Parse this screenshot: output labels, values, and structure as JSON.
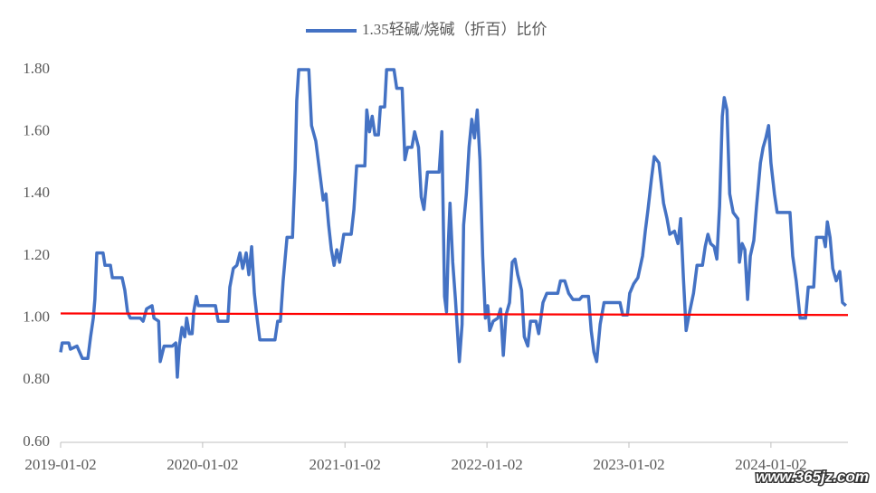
{
  "chart_data": {
    "type": "line",
    "xlim": [
      "2019-01-02",
      "2024-07-18"
    ],
    "xticks": [
      "2019-01-02",
      "2020-01-02",
      "2021-01-02",
      "2022-01-02",
      "2023-01-02",
      "2024-01-02"
    ],
    "ylim": [
      0.6,
      1.8
    ],
    "yticks": [
      {
        "value": 0.6,
        "label": "0.60"
      },
      {
        "value": 0.8,
        "label": "0.80"
      },
      {
        "value": 1.0,
        "label": "1.00"
      },
      {
        "value": 1.2,
        "label": "1.20"
      },
      {
        "value": 1.4,
        "label": "1.40"
      },
      {
        "value": 1.6,
        "label": "1.60"
      },
      {
        "value": 1.8,
        "label": "1.80"
      }
    ],
    "grid": false,
    "legend": "top",
    "watermark": "www.365jz.com",
    "x": [
      "2019-01-02",
      "2019-01-06",
      "2019-01-23",
      "2019-01-27",
      "2019-02-13",
      "2019-02-20",
      "2019-02-27",
      "2019-03-13",
      "2019-03-20",
      "2019-03-27",
      "2019-03-31",
      "2019-04-05",
      "2019-04-21",
      "2019-04-26",
      "2019-05-10",
      "2019-05-15",
      "2019-06-09",
      "2019-06-16",
      "2019-06-23",
      "2019-06-30",
      "2019-07-26",
      "2019-08-02",
      "2019-08-11",
      "2019-08-25",
      "2019-08-30",
      "2019-09-11",
      "2019-09-15",
      "2019-09-25",
      "2019-10-16",
      "2019-10-25",
      "2019-10-29",
      "2019-11-03",
      "2019-11-10",
      "2019-11-17",
      "2019-11-22",
      "2019-11-29",
      "2019-12-06",
      "2019-12-10",
      "2019-12-17",
      "2019-12-22",
      "2020-02-04",
      "2020-02-11",
      "2020-03-07",
      "2020-03-12",
      "2020-03-21",
      "2020-03-30",
      "2020-04-07",
      "2020-04-14",
      "2020-04-23",
      "2020-04-30",
      "2020-05-07",
      "2020-05-14",
      "2020-05-21",
      "2020-05-28",
      "2020-07-06",
      "2020-07-13",
      "2020-07-20",
      "2020-07-27",
      "2020-08-06",
      "2020-08-20",
      "2020-08-27",
      "2020-08-31",
      "2020-09-05",
      "2020-10-01",
      "2020-10-08",
      "2020-10-19",
      "2020-10-29",
      "2020-11-07",
      "2020-11-14",
      "2020-11-21",
      "2020-11-28",
      "2020-12-05",
      "2020-12-12",
      "2020-12-19",
      "2020-12-30",
      "2021-01-18",
      "2021-01-25",
      "2021-02-01",
      "2021-02-22",
      "2021-02-27",
      "2021-03-06",
      "2021-03-13",
      "2021-03-20",
      "2021-03-29",
      "2021-04-03",
      "2021-04-14",
      "2021-04-19",
      "2021-05-08",
      "2021-05-15",
      "2021-05-29",
      "2021-06-05",
      "2021-06-12",
      "2021-06-23",
      "2021-06-30",
      "2021-07-10",
      "2021-07-17",
      "2021-07-24",
      "2021-08-02",
      "2021-09-01",
      "2021-09-08",
      "2021-09-15",
      "2021-09-20",
      "2021-09-25",
      "2021-09-29",
      "2021-10-06",
      "2021-10-13",
      "2021-10-23",
      "2021-10-30",
      "2021-11-03",
      "2021-11-10",
      "2021-11-17",
      "2021-11-24",
      "2021-12-01",
      "2021-12-08",
      "2021-12-15",
      "2021-12-22",
      "2021-12-29",
      "2022-01-04",
      "2022-01-09",
      "2022-01-18",
      "2022-01-30",
      "2022-02-06",
      "2022-02-13",
      "2022-02-20",
      "2022-03-01",
      "2022-03-08",
      "2022-03-15",
      "2022-03-22",
      "2022-04-01",
      "2022-04-08",
      "2022-04-17",
      "2022-04-24",
      "2022-05-08",
      "2022-05-15",
      "2022-05-26",
      "2022-06-05",
      "2022-07-03",
      "2022-07-10",
      "2022-07-21",
      "2022-07-31",
      "2022-08-11",
      "2022-08-28",
      "2022-09-04",
      "2022-09-20",
      "2022-09-27",
      "2022-10-04",
      "2022-10-11",
      "2022-10-20",
      "2022-10-30",
      "2022-12-10",
      "2022-12-17",
      "2022-12-29",
      "2023-01-04",
      "2023-01-14",
      "2023-01-25",
      "2023-02-06",
      "2023-02-13",
      "2023-02-20",
      "2023-03-01",
      "2023-03-08",
      "2023-03-20",
      "2023-04-01",
      "2023-04-10",
      "2023-04-17",
      "2023-04-29",
      "2023-05-08",
      "2023-05-15",
      "2023-05-22",
      "2023-05-29",
      "2023-06-07",
      "2023-06-17",
      "2023-06-26",
      "2023-07-10",
      "2023-07-17",
      "2023-07-24",
      "2023-07-31",
      "2023-08-09",
      "2023-08-16",
      "2023-08-23",
      "2023-08-30",
      "2023-09-04",
      "2023-09-11",
      "2023-09-18",
      "2023-09-27",
      "2023-10-09",
      "2023-10-13",
      "2023-10-20",
      "2023-10-27",
      "2023-11-03",
      "2023-11-10",
      "2023-11-19",
      "2023-11-26",
      "2023-12-06",
      "2023-12-13",
      "2023-12-20",
      "2023-12-27",
      "2024-01-02",
      "2024-01-11",
      "2024-01-18",
      "2024-02-20",
      "2024-02-27",
      "2024-03-07",
      "2024-03-17",
      "2024-03-31",
      "2024-04-07",
      "2024-04-21",
      "2024-04-28",
      "2024-05-16",
      "2024-05-21",
      "2024-05-26",
      "2024-06-02",
      "2024-06-09",
      "2024-06-18",
      "2024-06-27",
      "2024-07-04",
      "2024-07-13"
    ],
    "series": [
      {
        "name": "1.35轻碱/烧碱（折百）比价",
        "color": "#4472c4",
        "values": [
          0.89,
          0.92,
          0.92,
          0.9,
          0.91,
          0.89,
          0.87,
          0.87,
          0.94,
          1.0,
          1.06,
          1.21,
          1.21,
          1.17,
          1.17,
          1.13,
          1.13,
          1.09,
          1.02,
          1.0,
          1.0,
          0.99,
          1.03,
          1.04,
          1.0,
          0.99,
          0.86,
          0.91,
          0.91,
          0.92,
          0.81,
          0.91,
          0.97,
          0.94,
          1.0,
          0.95,
          0.95,
          1.02,
          1.07,
          1.04,
          1.04,
          0.99,
          0.99,
          1.1,
          1.16,
          1.17,
          1.21,
          1.16,
          1.21,
          1.14,
          1.23,
          1.08,
          1.0,
          0.93,
          0.93,
          0.99,
          0.99,
          1.12,
          1.26,
          1.26,
          1.48,
          1.7,
          1.8,
          1.8,
          1.62,
          1.57,
          1.47,
          1.38,
          1.4,
          1.3,
          1.22,
          1.17,
          1.22,
          1.18,
          1.27,
          1.27,
          1.35,
          1.49,
          1.49,
          1.67,
          1.6,
          1.65,
          1.59,
          1.59,
          1.68,
          1.68,
          1.8,
          1.8,
          1.74,
          1.74,
          1.51,
          1.55,
          1.55,
          1.6,
          1.55,
          1.39,
          1.35,
          1.47,
          1.47,
          1.6,
          1.07,
          1.02,
          1.25,
          1.37,
          1.18,
          1.06,
          0.86,
          0.98,
          1.3,
          1.4,
          1.55,
          1.64,
          1.58,
          1.67,
          1.51,
          1.2,
          1.0,
          1.04,
          0.96,
          0.99,
          1.0,
          1.03,
          0.88,
          1.01,
          1.05,
          1.18,
          1.19,
          1.14,
          1.09,
          0.94,
          0.91,
          0.99,
          0.99,
          0.95,
          1.05,
          1.08,
          1.08,
          1.12,
          1.12,
          1.08,
          1.06,
          1.06,
          1.07,
          1.07,
          0.96,
          0.89,
          0.86,
          0.98,
          1.05,
          1.05,
          1.01,
          1.01,
          1.08,
          1.11,
          1.13,
          1.2,
          1.28,
          1.35,
          1.45,
          1.52,
          1.5,
          1.37,
          1.32,
          1.27,
          1.28,
          1.24,
          1.32,
          1.13,
          0.96,
          1.02,
          1.08,
          1.17,
          1.17,
          1.23,
          1.27,
          1.24,
          1.23,
          1.19,
          1.36,
          1.65,
          1.71,
          1.67,
          1.4,
          1.34,
          1.32,
          1.18,
          1.24,
          1.22,
          1.06,
          1.2,
          1.25,
          1.36,
          1.5,
          1.55,
          1.58,
          1.62,
          1.5,
          1.4,
          1.34,
          1.34,
          1.2,
          1.12,
          1.0,
          1.0,
          1.1,
          1.1,
          1.26,
          1.26,
          1.23,
          1.31,
          1.26,
          1.16,
          1.12,
          1.15,
          1.05,
          1.04
        ]
      }
    ],
    "reference_line": {
      "x": [
        "2019-01-02",
        "2024-07-18"
      ],
      "values": [
        1.015,
        1.01
      ],
      "color": "#ff0000"
    }
  }
}
